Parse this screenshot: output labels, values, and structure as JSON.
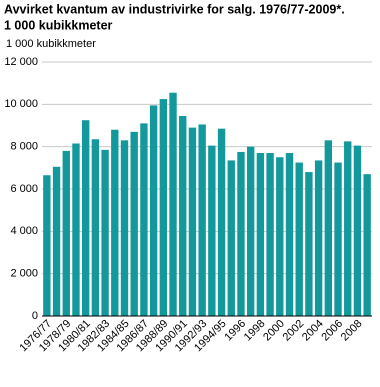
{
  "chart_data": {
    "type": "bar",
    "title": "Avvirket kvantum av industrivirke for salg. 1976/77-2009*.",
    "subtitle": "1 000 kubikkmeter",
    "y_label": "1 000 kubikkmeter",
    "categories": [
      "1976/77",
      null,
      "1978/79",
      null,
      "1980/81",
      null,
      "1982/83",
      null,
      "1984/85",
      null,
      "1986/87",
      null,
      "1988/89",
      null,
      "1990/91",
      null,
      "1992/93",
      null,
      "1994/95",
      null,
      "1996",
      null,
      "1998",
      null,
      "2000",
      null,
      "2002",
      null,
      "2004",
      null,
      "2006",
      null,
      "2008",
      null
    ],
    "values": [
      6650,
      7050,
      7800,
      8150,
      9250,
      8350,
      7850,
      8800,
      8300,
      8700,
      9100,
      9950,
      10250,
      10550,
      9450,
      8900,
      9050,
      8050,
      8850,
      7350,
      7750,
      8000,
      7700,
      7700,
      7500,
      7700,
      7250,
      6800,
      7350,
      8300,
      7250,
      8250,
      8050,
      6700
    ],
    "color": "#13999b",
    "ylim": [
      0,
      12000
    ],
    "yticks": [
      0,
      {
        "value": 2000,
        "label": "2 000"
      },
      {
        "value": 4000,
        "label": "4 000"
      },
      {
        "value": 6000,
        "label": "6 000"
      },
      {
        "value": 8000,
        "label": "8 000"
      },
      {
        "value": 10000,
        "label": "10 000"
      },
      {
        "value": 12000,
        "label": "12 000"
      }
    ],
    "grid": true
  }
}
